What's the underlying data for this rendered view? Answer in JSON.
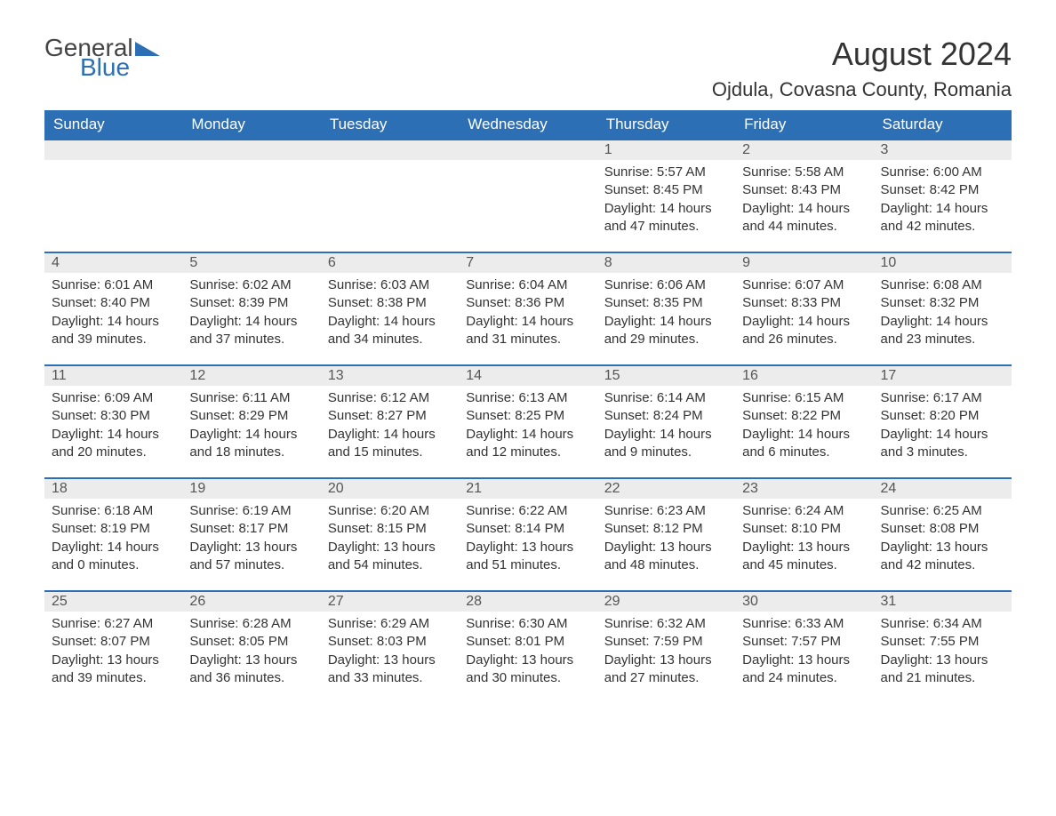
{
  "logo": {
    "text1": "General",
    "text2": "Blue"
  },
  "title": "August 2024",
  "location": "Ojdula, Covasna County, Romania",
  "colors": {
    "header_bg": "#2d6fb5",
    "header_fg": "#ffffff",
    "daynum_bg": "#ececec",
    "border": "#2d6fb5",
    "text": "#333333"
  },
  "weekdays": [
    "Sunday",
    "Monday",
    "Tuesday",
    "Wednesday",
    "Thursday",
    "Friday",
    "Saturday"
  ],
  "weeks": [
    [
      {
        "empty": true
      },
      {
        "empty": true
      },
      {
        "empty": true
      },
      {
        "empty": true
      },
      {
        "day": "1",
        "sunrise": "Sunrise: 5:57 AM",
        "sunset": "Sunset: 8:45 PM",
        "daylight": "Daylight: 14 hours and 47 minutes."
      },
      {
        "day": "2",
        "sunrise": "Sunrise: 5:58 AM",
        "sunset": "Sunset: 8:43 PM",
        "daylight": "Daylight: 14 hours and 44 minutes."
      },
      {
        "day": "3",
        "sunrise": "Sunrise: 6:00 AM",
        "sunset": "Sunset: 8:42 PM",
        "daylight": "Daylight: 14 hours and 42 minutes."
      }
    ],
    [
      {
        "day": "4",
        "sunrise": "Sunrise: 6:01 AM",
        "sunset": "Sunset: 8:40 PM",
        "daylight": "Daylight: 14 hours and 39 minutes."
      },
      {
        "day": "5",
        "sunrise": "Sunrise: 6:02 AM",
        "sunset": "Sunset: 8:39 PM",
        "daylight": "Daylight: 14 hours and 37 minutes."
      },
      {
        "day": "6",
        "sunrise": "Sunrise: 6:03 AM",
        "sunset": "Sunset: 8:38 PM",
        "daylight": "Daylight: 14 hours and 34 minutes."
      },
      {
        "day": "7",
        "sunrise": "Sunrise: 6:04 AM",
        "sunset": "Sunset: 8:36 PM",
        "daylight": "Daylight: 14 hours and 31 minutes."
      },
      {
        "day": "8",
        "sunrise": "Sunrise: 6:06 AM",
        "sunset": "Sunset: 8:35 PM",
        "daylight": "Daylight: 14 hours and 29 minutes."
      },
      {
        "day": "9",
        "sunrise": "Sunrise: 6:07 AM",
        "sunset": "Sunset: 8:33 PM",
        "daylight": "Daylight: 14 hours and 26 minutes."
      },
      {
        "day": "10",
        "sunrise": "Sunrise: 6:08 AM",
        "sunset": "Sunset: 8:32 PM",
        "daylight": "Daylight: 14 hours and 23 minutes."
      }
    ],
    [
      {
        "day": "11",
        "sunrise": "Sunrise: 6:09 AM",
        "sunset": "Sunset: 8:30 PM",
        "daylight": "Daylight: 14 hours and 20 minutes."
      },
      {
        "day": "12",
        "sunrise": "Sunrise: 6:11 AM",
        "sunset": "Sunset: 8:29 PM",
        "daylight": "Daylight: 14 hours and 18 minutes."
      },
      {
        "day": "13",
        "sunrise": "Sunrise: 6:12 AM",
        "sunset": "Sunset: 8:27 PM",
        "daylight": "Daylight: 14 hours and 15 minutes."
      },
      {
        "day": "14",
        "sunrise": "Sunrise: 6:13 AM",
        "sunset": "Sunset: 8:25 PM",
        "daylight": "Daylight: 14 hours and 12 minutes."
      },
      {
        "day": "15",
        "sunrise": "Sunrise: 6:14 AM",
        "sunset": "Sunset: 8:24 PM",
        "daylight": "Daylight: 14 hours and 9 minutes."
      },
      {
        "day": "16",
        "sunrise": "Sunrise: 6:15 AM",
        "sunset": "Sunset: 8:22 PM",
        "daylight": "Daylight: 14 hours and 6 minutes."
      },
      {
        "day": "17",
        "sunrise": "Sunrise: 6:17 AM",
        "sunset": "Sunset: 8:20 PM",
        "daylight": "Daylight: 14 hours and 3 minutes."
      }
    ],
    [
      {
        "day": "18",
        "sunrise": "Sunrise: 6:18 AM",
        "sunset": "Sunset: 8:19 PM",
        "daylight": "Daylight: 14 hours and 0 minutes."
      },
      {
        "day": "19",
        "sunrise": "Sunrise: 6:19 AM",
        "sunset": "Sunset: 8:17 PM",
        "daylight": "Daylight: 13 hours and 57 minutes."
      },
      {
        "day": "20",
        "sunrise": "Sunrise: 6:20 AM",
        "sunset": "Sunset: 8:15 PM",
        "daylight": "Daylight: 13 hours and 54 minutes."
      },
      {
        "day": "21",
        "sunrise": "Sunrise: 6:22 AM",
        "sunset": "Sunset: 8:14 PM",
        "daylight": "Daylight: 13 hours and 51 minutes."
      },
      {
        "day": "22",
        "sunrise": "Sunrise: 6:23 AM",
        "sunset": "Sunset: 8:12 PM",
        "daylight": "Daylight: 13 hours and 48 minutes."
      },
      {
        "day": "23",
        "sunrise": "Sunrise: 6:24 AM",
        "sunset": "Sunset: 8:10 PM",
        "daylight": "Daylight: 13 hours and 45 minutes."
      },
      {
        "day": "24",
        "sunrise": "Sunrise: 6:25 AM",
        "sunset": "Sunset: 8:08 PM",
        "daylight": "Daylight: 13 hours and 42 minutes."
      }
    ],
    [
      {
        "day": "25",
        "sunrise": "Sunrise: 6:27 AM",
        "sunset": "Sunset: 8:07 PM",
        "daylight": "Daylight: 13 hours and 39 minutes."
      },
      {
        "day": "26",
        "sunrise": "Sunrise: 6:28 AM",
        "sunset": "Sunset: 8:05 PM",
        "daylight": "Daylight: 13 hours and 36 minutes."
      },
      {
        "day": "27",
        "sunrise": "Sunrise: 6:29 AM",
        "sunset": "Sunset: 8:03 PM",
        "daylight": "Daylight: 13 hours and 33 minutes."
      },
      {
        "day": "28",
        "sunrise": "Sunrise: 6:30 AM",
        "sunset": "Sunset: 8:01 PM",
        "daylight": "Daylight: 13 hours and 30 minutes."
      },
      {
        "day": "29",
        "sunrise": "Sunrise: 6:32 AM",
        "sunset": "Sunset: 7:59 PM",
        "daylight": "Daylight: 13 hours and 27 minutes."
      },
      {
        "day": "30",
        "sunrise": "Sunrise: 6:33 AM",
        "sunset": "Sunset: 7:57 PM",
        "daylight": "Daylight: 13 hours and 24 minutes."
      },
      {
        "day": "31",
        "sunrise": "Sunrise: 6:34 AM",
        "sunset": "Sunset: 7:55 PM",
        "daylight": "Daylight: 13 hours and 21 minutes."
      }
    ]
  ]
}
